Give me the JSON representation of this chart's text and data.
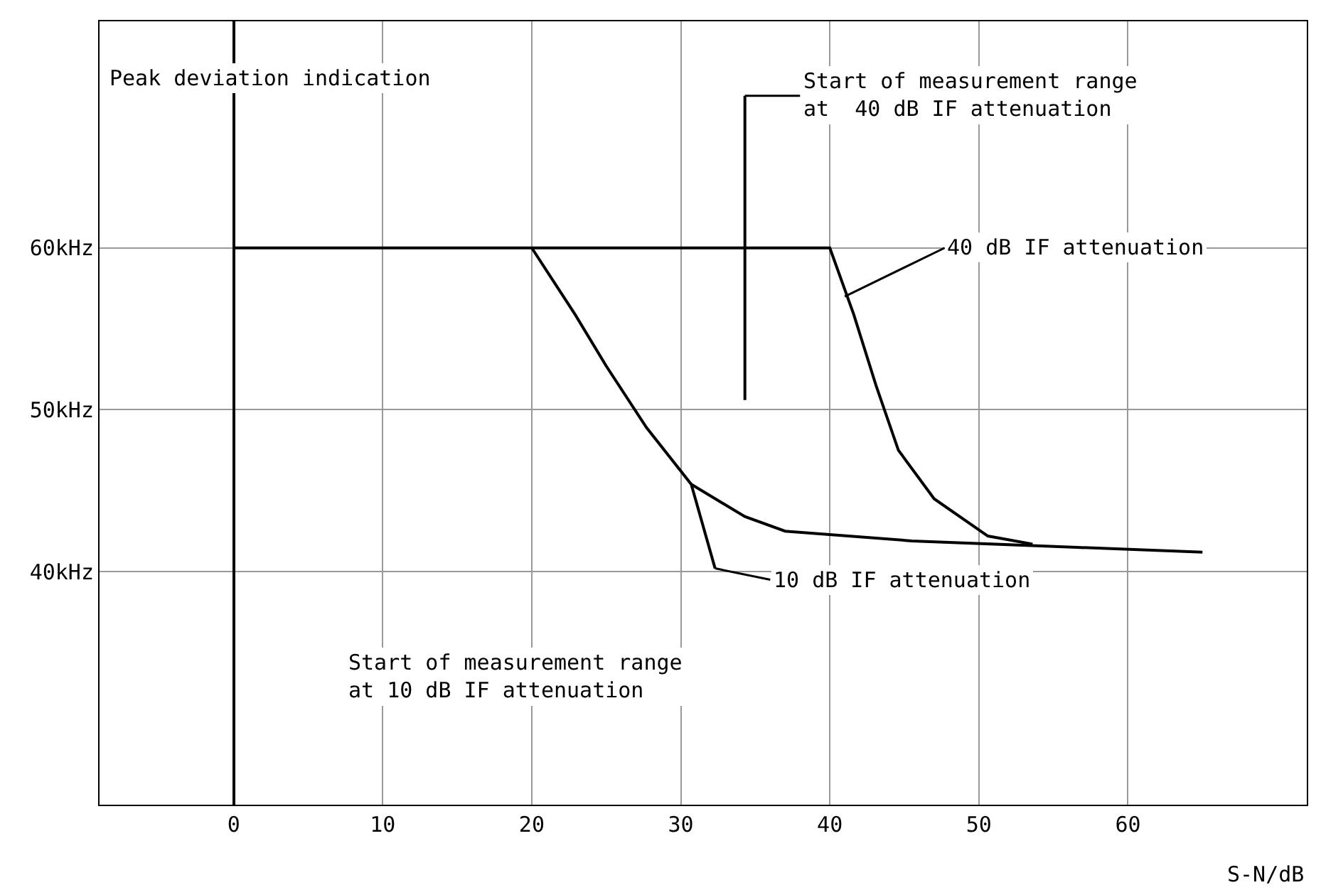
{
  "chart_data": {
    "type": "line",
    "xlabel": "S-N/dB",
    "ylabel": "Peak deviation indication",
    "xlim": [
      -9,
      72
    ],
    "ylim": [
      25.6,
      74
    ],
    "xticks": [
      0,
      10,
      20,
      30,
      40,
      50,
      60
    ],
    "yticks": [
      {
        "value": 40,
        "label": "40kHz"
      },
      {
        "value": 50,
        "label": "50kHz"
      },
      {
        "value": 60,
        "label": "60kHz"
      }
    ],
    "grid": true,
    "series": [
      {
        "color": "#000000",
        "x": [
          0,
          40,
          41.6,
          43.1,
          44.6,
          47.0,
          50.6,
          53.6
        ],
        "values": [
          60,
          60,
          55.9,
          51.5,
          47.5,
          44.5,
          42.2,
          41.7
        ]
      },
      {
        "color": "#000000",
        "x": [
          20,
          22.9,
          25.0,
          27.7,
          30.7,
          32.3
        ],
        "values": [
          60,
          55.9,
          52.7,
          48.9,
          45.4,
          40.2
        ]
      },
      {
        "color": "#000000",
        "x": [
          30.7,
          34.3,
          37.0,
          45.5,
          56.6,
          65
        ],
        "values": [
          45.4,
          43.4,
          42.5,
          41.9,
          41.5,
          41.2
        ]
      },
      {
        "color": "#000000",
        "x": [
          34.3,
          34.3
        ],
        "values": [
          50.6,
          69.4
        ]
      }
    ],
    "annotations": [
      {
        "text": "Start of measurement range\nat  40 dB IF attenuation",
        "x": 34.3,
        "y": 69.4
      },
      {
        "text": "40 dB IF attenuation",
        "x": 41,
        "y": 57
      },
      {
        "text": "10 dB IF attenuation",
        "x": 32.3,
        "y": 40.2
      },
      "Start of measurement range\nat 10 dB IF attenuation"
    ]
  }
}
